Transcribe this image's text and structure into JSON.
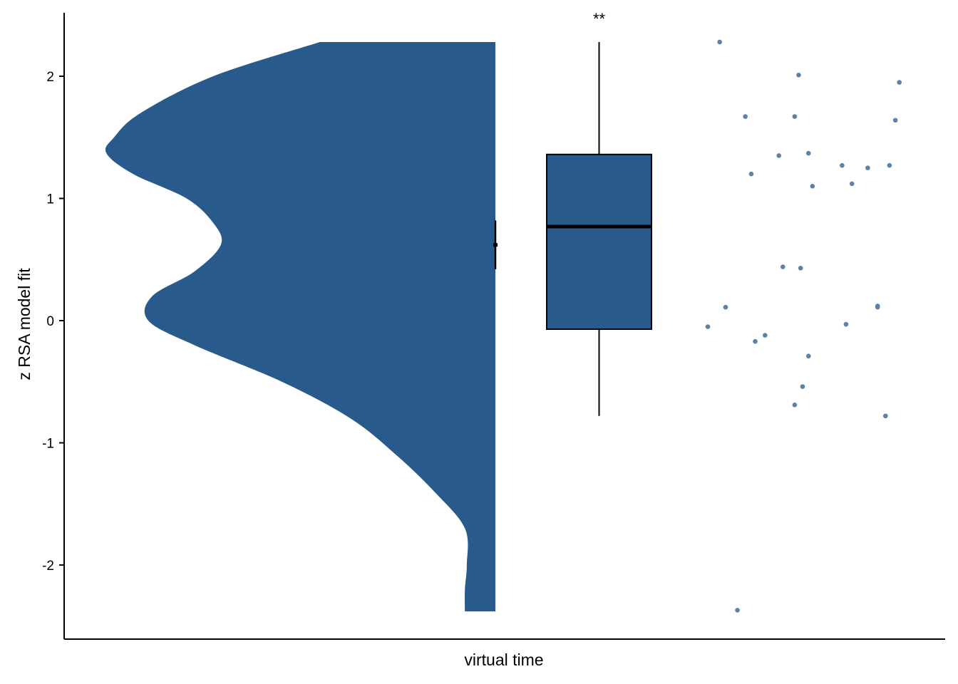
{
  "chart_data": {
    "type": "raincloud",
    "xlabel": "virtual time",
    "ylabel": "z RSA model fit",
    "ylim": [
      -2.6,
      2.5
    ],
    "yticks": [
      -2,
      -1,
      0,
      1,
      2
    ],
    "grid": false,
    "legend": "none",
    "fill_color": "#285a8c",
    "point_color": "#5b82aa",
    "significance": "**",
    "density_profile": [
      {
        "y": 2.28,
        "w": 0.46
      },
      {
        "y": 2.0,
        "w": 0.74
      },
      {
        "y": 1.7,
        "w": 0.93
      },
      {
        "y": 1.5,
        "w": 1.0
      },
      {
        "y": 1.37,
        "w": 1.02
      },
      {
        "y": 1.2,
        "w": 0.95
      },
      {
        "y": 1.0,
        "w": 0.81
      },
      {
        "y": 0.8,
        "w": 0.74
      },
      {
        "y": 0.62,
        "w": 0.72
      },
      {
        "y": 0.4,
        "w": 0.79
      },
      {
        "y": 0.2,
        "w": 0.9
      },
      {
        "y": 0.0,
        "w": 0.91
      },
      {
        "y": -0.2,
        "w": 0.79
      },
      {
        "y": -0.5,
        "w": 0.56
      },
      {
        "y": -0.8,
        "w": 0.38
      },
      {
        "y": -1.1,
        "w": 0.26
      },
      {
        "y": -1.4,
        "w": 0.16
      },
      {
        "y": -1.7,
        "w": 0.08
      },
      {
        "y": -2.0,
        "w": 0.075
      },
      {
        "y": -2.2,
        "w": 0.08
      },
      {
        "y": -2.38,
        "w": 0.08
      }
    ],
    "mean": 0.62,
    "ci": [
      0.42,
      0.82
    ],
    "box": {
      "min": -0.78,
      "q1": -0.07,
      "median": 0.77,
      "q3": 1.36,
      "max": 2.28
    },
    "points": [
      {
        "j": 0.06,
        "y": 2.28
      },
      {
        "j": 0.46,
        "y": 2.01
      },
      {
        "j": 0.97,
        "y": 1.95
      },
      {
        "j": 0.19,
        "y": 1.67
      },
      {
        "j": 0.44,
        "y": 1.67
      },
      {
        "j": 0.95,
        "y": 1.64
      },
      {
        "j": 0.36,
        "y": 1.35
      },
      {
        "j": 0.51,
        "y": 1.37
      },
      {
        "j": 0.68,
        "y": 1.27
      },
      {
        "j": 0.81,
        "y": 1.25
      },
      {
        "j": 0.92,
        "y": 1.27
      },
      {
        "j": 0.22,
        "y": 1.2
      },
      {
        "j": 0.53,
        "y": 1.1
      },
      {
        "j": 0.73,
        "y": 1.12
      },
      {
        "j": 0.38,
        "y": 0.44
      },
      {
        "j": 0.47,
        "y": 0.43
      },
      {
        "j": 0.09,
        "y": 0.11
      },
      {
        "j": 0.86,
        "y": 0.12
      },
      {
        "j": 0.86,
        "y": 0.11
      },
      {
        "j": 0.0,
        "y": -0.05
      },
      {
        "j": 0.7,
        "y": -0.03
      },
      {
        "j": 0.29,
        "y": -0.12
      },
      {
        "j": 0.24,
        "y": -0.17
      },
      {
        "j": 0.51,
        "y": -0.29
      },
      {
        "j": 0.48,
        "y": -0.54
      },
      {
        "j": 0.44,
        "y": -0.69
      },
      {
        "j": 0.9,
        "y": -0.78
      },
      {
        "j": 0.15,
        "y": -2.37
      }
    ]
  }
}
